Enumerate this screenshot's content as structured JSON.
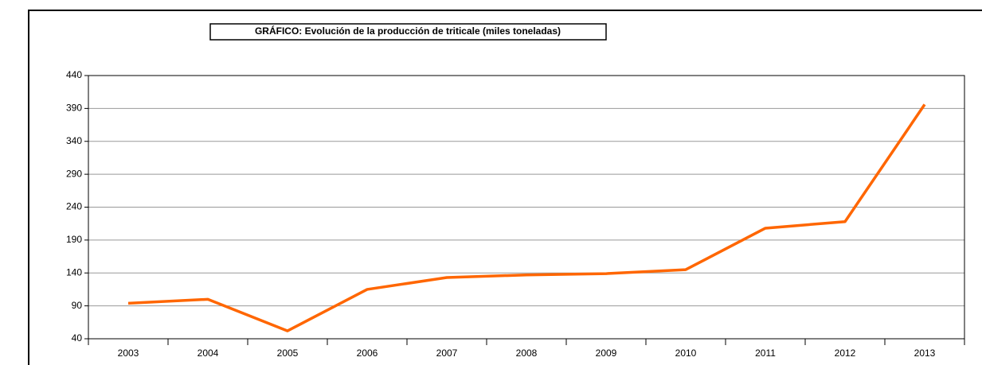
{
  "chart_data": {
    "type": "line",
    "title": "GRÁFICO: Evolución de la producción de triticale (miles toneladas)",
    "categories": [
      "2003",
      "2004",
      "2005",
      "2006",
      "2007",
      "2008",
      "2009",
      "2010",
      "2011",
      "2012",
      "2013"
    ],
    "series": [
      {
        "name": "Triticale",
        "color": "#ff6600",
        "values": [
          94,
          100,
          52,
          115,
          133,
          137,
          139,
          145,
          208,
          218,
          396
        ]
      }
    ],
    "ylim": [
      40,
      440
    ],
    "yticks": [
      40,
      90,
      140,
      190,
      240,
      290,
      340,
      390,
      440
    ],
    "grid": true
  }
}
